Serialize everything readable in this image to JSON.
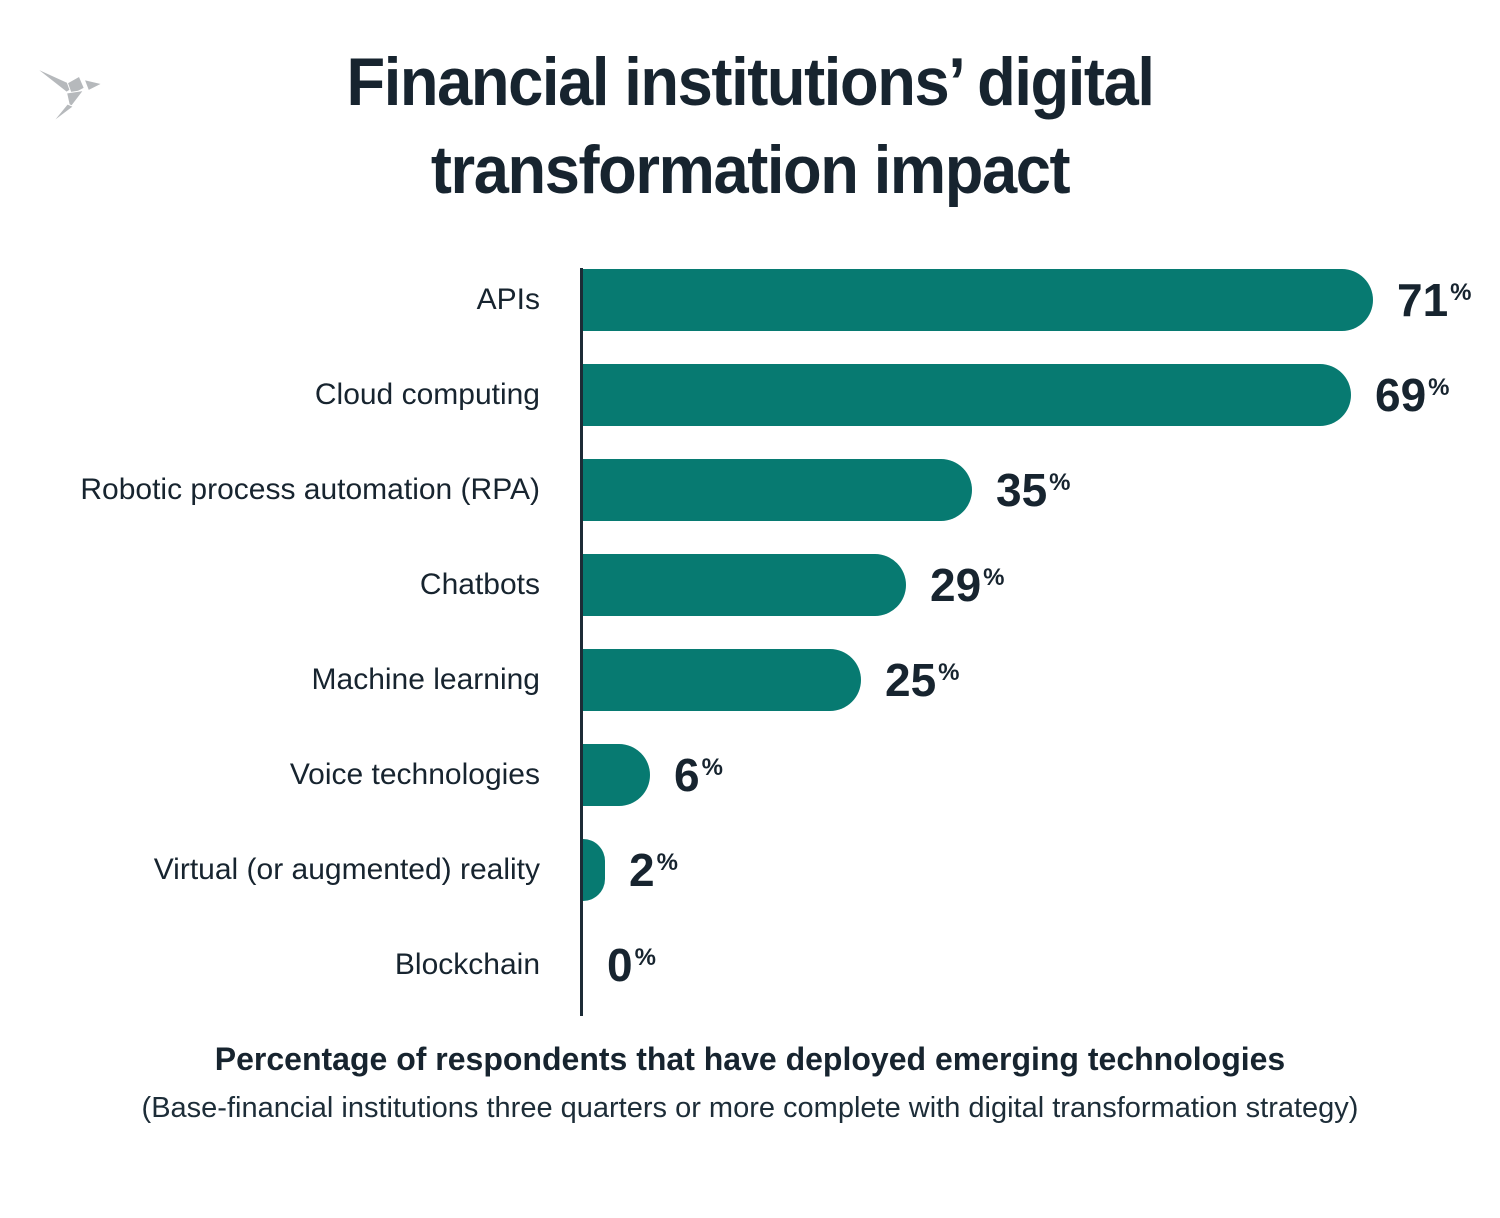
{
  "title": {
    "line1": "Financial institutions’ digital",
    "line2": "transformation impact"
  },
  "chart_data": {
    "type": "bar",
    "orientation": "horizontal",
    "title": "Financial institutions’ digital transformation impact",
    "categories": [
      "APIs",
      "Cloud computing",
      "Robotic process automation (RPA)",
      "Chatbots",
      "Machine learning",
      "Voice technologies",
      "Virtual (or augmented) reality",
      "Blockchain"
    ],
    "values": [
      71,
      69,
      35,
      29,
      25,
      6,
      2,
      0
    ],
    "unit": "%",
    "xlabel": "",
    "ylabel": "",
    "xlim": [
      0,
      75
    ],
    "grid": false,
    "legend": false,
    "bar_color": "#077a71",
    "caption": "Percentage of respondents that have deployed emerging technologies",
    "caption_note": "(Base-financial institutions three quarters or more complete with digital transformation strategy)"
  },
  "footer": {
    "bold_line": "Percentage of respondents that have deployed emerging technologies",
    "sub_line": "(Base-financial institutions three quarters or more complete with digital transformation strategy)"
  },
  "colors": {
    "bar": "#077a71",
    "text": "#17242f",
    "axis": "#1c2b36",
    "logo": "#b6b9bc"
  },
  "icons": {
    "logo": "origami-bird"
  }
}
